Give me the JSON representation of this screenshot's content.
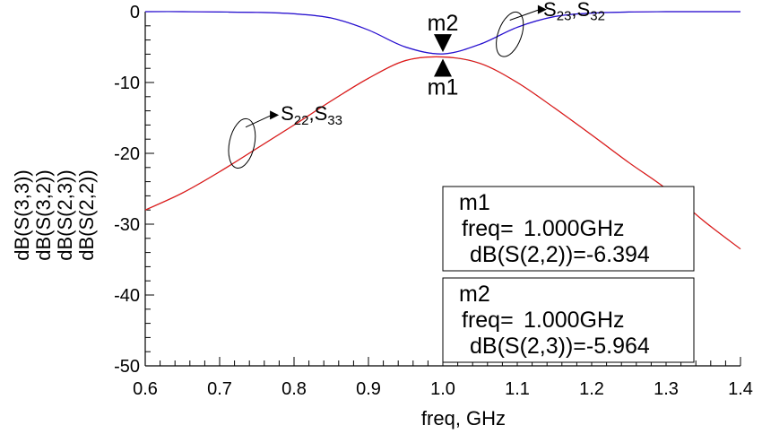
{
  "chart_data": {
    "type": "line",
    "xlabel": "freq, GHz",
    "xlim": [
      0.6,
      1.4
    ],
    "ylim": [
      -50,
      0
    ],
    "x_ticks": [
      "0.6",
      "0.7",
      "0.8",
      "0.9",
      "1.0",
      "1.1",
      "1.2",
      "1.3",
      "1.4"
    ],
    "y_ticks": [
      "0",
      "-10",
      "-20",
      "-30",
      "-40",
      "-50"
    ],
    "grid": false,
    "ylabels": [
      {
        "text": "dB(S(3,3))",
        "color": "#33dddd"
      },
      {
        "text": "dB(S(3,2))",
        "color": "#ff33ff"
      },
      {
        "text": "dB(S(2,3))",
        "color": "#1a1acc"
      },
      {
        "text": "dB(S(2,2))",
        "color": "#ee1111"
      }
    ],
    "series": [
      {
        "name": "dB(S(3,3))",
        "color": "#33dddd",
        "x": [
          0.6,
          0.65,
          0.7,
          0.75,
          0.8,
          0.85,
          0.9,
          0.95,
          1.0,
          1.05,
          1.1,
          1.15,
          1.2,
          1.25,
          1.3,
          1.35,
          1.4
        ],
        "y": [
          -28.0,
          -25.6,
          -22.6,
          -19.3,
          -16.0,
          -12.6,
          -9.4,
          -6.9,
          -6.4,
          -7.3,
          -10.0,
          -13.6,
          -17.4,
          -21.3,
          -25.0,
          -29.5,
          -33.5
        ]
      },
      {
        "name": "dB(S(3,2))",
        "color": "#ff33ff",
        "x": [
          0.6,
          0.65,
          0.7,
          0.75,
          0.8,
          0.85,
          0.9,
          0.95,
          1.0,
          1.05,
          1.1,
          1.15,
          1.2,
          1.25,
          1.3,
          1.35,
          1.4
        ],
        "y": [
          0.0,
          0.0,
          -0.05,
          -0.1,
          -0.3,
          -0.9,
          -2.6,
          -5.0,
          -5.96,
          -4.6,
          -2.2,
          -0.7,
          -0.2,
          -0.05,
          0.0,
          0.0,
          0.0
        ]
      },
      {
        "name": "dB(S(2,3))",
        "color": "#1a1acc",
        "x": [
          0.6,
          0.65,
          0.7,
          0.75,
          0.8,
          0.85,
          0.9,
          0.95,
          1.0,
          1.05,
          1.1,
          1.15,
          1.2,
          1.25,
          1.3,
          1.35,
          1.4
        ],
        "y": [
          0.0,
          0.0,
          -0.05,
          -0.1,
          -0.3,
          -0.9,
          -2.6,
          -5.0,
          -5.964,
          -4.6,
          -2.2,
          -0.7,
          -0.2,
          -0.05,
          0.0,
          0.0,
          0.0
        ]
      },
      {
        "name": "dB(S(2,2))",
        "color": "#ee1111",
        "x": [
          0.6,
          0.65,
          0.7,
          0.75,
          0.8,
          0.85,
          0.9,
          0.95,
          1.0,
          1.05,
          1.1,
          1.15,
          1.2,
          1.25,
          1.3,
          1.35,
          1.4
        ],
        "y": [
          -28.0,
          -25.6,
          -22.6,
          -19.3,
          -16.0,
          -12.6,
          -9.4,
          -6.9,
          -6.394,
          -7.3,
          -10.0,
          -13.6,
          -17.4,
          -21.3,
          -25.0,
          -29.5,
          -33.5
        ]
      }
    ],
    "annotations": [
      {
        "id": "s23",
        "main": "S",
        "sub1": "23",
        "sep": ",",
        "main2": "S",
        "sub2": "32",
        "x": 1.1,
        "y": 0
      },
      {
        "id": "s22",
        "main": "S",
        "sub1": "22",
        "sep": ",",
        "main2": "S",
        "sub2": "33",
        "x": 0.77,
        "y": -15
      }
    ],
    "markers": [
      {
        "id": "m1",
        "label": "m1",
        "x": 1.0,
        "y": -6.394,
        "freq_label": "freq=",
        "freq_value": "1.000GHz",
        "readout": "dB(S(2,2))=-6.394"
      },
      {
        "id": "m2",
        "label": "m2",
        "x": 1.0,
        "y": -5.964,
        "freq_label": "freq=",
        "freq_value": "1.000GHz",
        "readout": "dB(S(2,3))=-5.964"
      }
    ]
  }
}
